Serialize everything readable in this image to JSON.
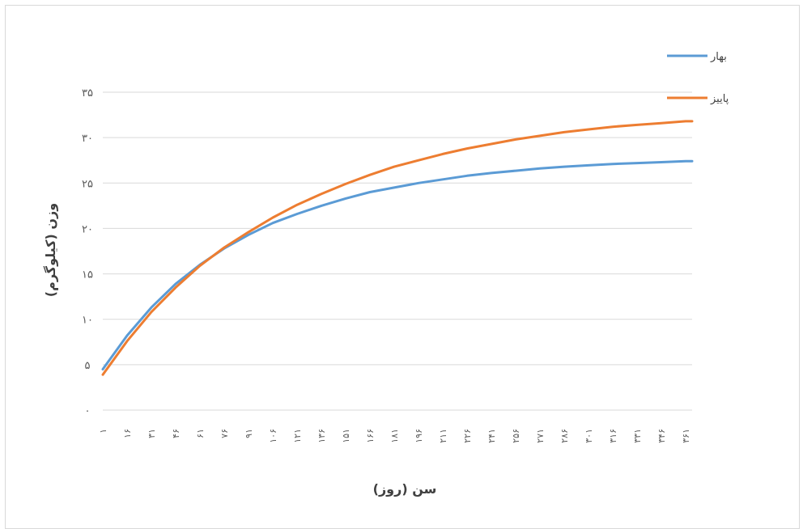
{
  "chart_data": {
    "type": "line",
    "xlabel": "سن (روز)",
    "ylabel": "وزن (کیلوگرم)",
    "ylim": [
      0,
      35
    ],
    "y_ticks": [
      0,
      5,
      10,
      15,
      20,
      25,
      30,
      35
    ],
    "y_tick_labels": [
      "۰",
      "۵",
      "۱۰",
      "۱۵",
      "۲۰",
      "۲۵",
      "۳۰",
      "۳۵"
    ],
    "x_ticks": [
      1,
      16,
      31,
      46,
      61,
      76,
      91,
      106,
      121,
      136,
      151,
      166,
      181,
      196,
      211,
      226,
      241,
      256,
      271,
      286,
      301,
      316,
      331,
      346,
      361
    ],
    "x_tick_labels": [
      "۱",
      "۱۶",
      "۳۱",
      "۴۶",
      "۶۱",
      "۷۶",
      "۹۱",
      "۱۰۶",
      "۱۲۱",
      "۱۳۶",
      "۱۵۱",
      "۱۶۶",
      "۱۸۱",
      "۱۹۶",
      "۲۱۱",
      "۲۲۶",
      "۲۴۱",
      "۲۵۶",
      "۲۷۱",
      "۲۸۶",
      "۳۰۱",
      "۳۱۶",
      "۳۳۱",
      "۳۴۶",
      "۳۶۱"
    ],
    "x_range": [
      1,
      365
    ],
    "grid": true,
    "legend_position": "top-right",
    "series": [
      {
        "name": "بهار",
        "color": "#5b9bd5",
        "x": [
          1,
          16,
          31,
          46,
          61,
          76,
          91,
          106,
          121,
          136,
          151,
          166,
          181,
          196,
          211,
          226,
          241,
          256,
          271,
          286,
          301,
          316,
          331,
          346,
          361,
          365
        ],
        "values": [
          4.5,
          8.2,
          11.3,
          13.9,
          16.0,
          17.8,
          19.3,
          20.6,
          21.6,
          22.5,
          23.3,
          24.0,
          24.5,
          25.0,
          25.4,
          25.8,
          26.1,
          26.35,
          26.6,
          26.8,
          26.95,
          27.1,
          27.2,
          27.3,
          27.4,
          27.4
        ]
      },
      {
        "name": "پاییز",
        "color": "#ed7d31",
        "x": [
          1,
          16,
          31,
          46,
          61,
          76,
          91,
          106,
          121,
          136,
          151,
          166,
          181,
          196,
          211,
          226,
          241,
          256,
          271,
          286,
          301,
          316,
          331,
          346,
          361,
          365
        ],
        "values": [
          3.9,
          7.6,
          10.8,
          13.5,
          15.9,
          17.9,
          19.6,
          21.2,
          22.6,
          23.8,
          24.9,
          25.9,
          26.8,
          27.5,
          28.2,
          28.8,
          29.3,
          29.8,
          30.2,
          30.6,
          30.9,
          31.2,
          31.4,
          31.6,
          31.8,
          31.8
        ]
      }
    ]
  }
}
